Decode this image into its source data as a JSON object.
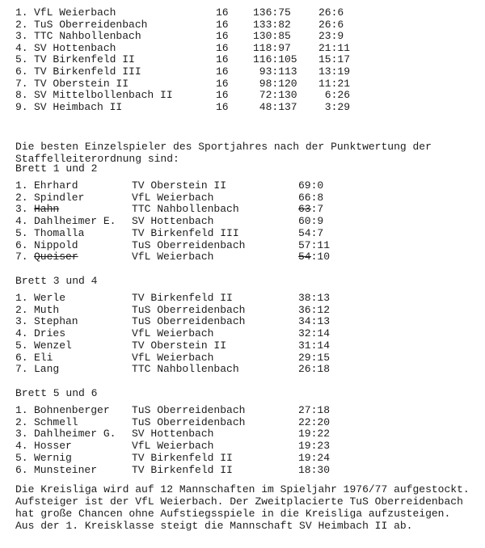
{
  "standings": [
    {
      "rank": "1.",
      "team": "VfL Weierbach",
      "games": "16",
      "sets": "136:75",
      "points": "26:6"
    },
    {
      "rank": "2.",
      "team": "TuS Oberreidenbach",
      "games": "16",
      "sets": "133:82",
      "points": "26:6"
    },
    {
      "rank": "3.",
      "team": "TTC Nahbollenbach",
      "games": "16",
      "sets": "130:85",
      "points": "23:9"
    },
    {
      "rank": "4.",
      "team": "SV Hottenbach",
      "games": "16",
      "sets": "118:97",
      "points": "21:11"
    },
    {
      "rank": "5.",
      "team": "TV Birkenfeld II",
      "games": "16",
      "sets": "116:105",
      "points": "15:17"
    },
    {
      "rank": "6.",
      "team": "TV Birkenfeld III",
      "games": "16",
      "sets": "93:113",
      "points": "13:19"
    },
    {
      "rank": "7.",
      "team": "TV Oberstein II",
      "games": "16",
      "sets": "98:120",
      "points": "11:21"
    },
    {
      "rank": "8.",
      "team": "SV Mittelbollenbach II",
      "games": "16",
      "sets": "72:130",
      "points": "6:26"
    },
    {
      "rank": "9.",
      "team": "SV Heimbach II",
      "games": "16",
      "sets": "48:137",
      "points": "3:29"
    }
  ],
  "intro": [
    "Die besten Einzelspieler des Sportjahres nach der Punktwertung der",
    "Staffelleiterordnung sind:"
  ],
  "boards": [
    {
      "title": "Brett 1 und 2",
      "players": [
        {
          "rank": "1.",
          "name": "Ehrhard",
          "club": "TV Oberstein II",
          "score": "69:0"
        },
        {
          "rank": "2.",
          "name": "Spindler",
          "club": "VfL Weierbach",
          "score": "66:8"
        },
        {
          "rank": "3.",
          "name": "Hahn",
          "club": "TTC Nahbollenbach",
          "score": "63:7",
          "struck": true
        },
        {
          "rank": "4.",
          "name": "Dahlheimer E.",
          "club": "SV Hottenbach",
          "score": "60:9"
        },
        {
          "rank": "5.",
          "name": "Thomalla",
          "club": "TV Birkenfeld III",
          "score": "54:7"
        },
        {
          "rank": "6.",
          "name": "Nippold",
          "club": "TuS Oberreidenbach",
          "score": "57:11"
        },
        {
          "rank": "7.",
          "name": "Queiser",
          "club": "VfL Weierbach",
          "score": "54:10",
          "struck": true
        }
      ]
    },
    {
      "title": "Brett 3 und 4",
      "players": [
        {
          "rank": "1.",
          "name": "Werle",
          "club": "TV Birkenfeld II",
          "score": "38:13"
        },
        {
          "rank": "2.",
          "name": "Muth",
          "club": "TuS Oberreidenbach",
          "score": "36:12"
        },
        {
          "rank": "3.",
          "name": "Stephan",
          "club": "TuS Oberreidenbach",
          "score": "34:13"
        },
        {
          "rank": "4.",
          "name": "Dries",
          "club": "VfL Weierbach",
          "score": "32:14"
        },
        {
          "rank": "5.",
          "name": "Wenzel",
          "club": "TV Oberstein II",
          "score": "31:14"
        },
        {
          "rank": "6.",
          "name": "Eli",
          "club": "VfL Weierbach",
          "score": "29:15"
        },
        {
          "rank": "7.",
          "name": "Lang",
          "club": "TTC Nahbollenbach",
          "score": "26:18"
        }
      ]
    },
    {
      "title": "Brett 5 und 6",
      "players": [
        {
          "rank": "1.",
          "name": "Bohnenberger",
          "club": "TuS Oberreidenbach",
          "score": "27:18"
        },
        {
          "rank": "2.",
          "name": "Schmell",
          "club": "TuS Oberreidenbach",
          "score": "22:20"
        },
        {
          "rank": "3.",
          "name": "Dahlheimer G.",
          "club": "SV Hottenbach",
          "score": "19:22"
        },
        {
          "rank": "4.",
          "name": "Hosser",
          "club": "VfL Weierbach",
          "score": "19:23"
        },
        {
          "rank": "5.",
          "name": "Wernig",
          "club": "TV Birkenfeld II",
          "score": "19:24"
        },
        {
          "rank": "6.",
          "name": "Munsteiner",
          "club": "TV Birkenfeld II",
          "score": "18:30"
        }
      ]
    }
  ],
  "closing": [
    "Die Kreisliga wird auf 12 Mannschaften im Spieljahr 1976/77 aufgestockt.",
    "Aufsteiger ist der VfL Weierbach. Der Zweitplacierte TuS Oberreidenbach",
    "hat große Chancen ohne Aufstiegsspiele in die Kreisliga aufzusteigen.",
    "Aus der 1. Kreisklasse steigt die Mannschaft SV Heimbach II ab."
  ]
}
